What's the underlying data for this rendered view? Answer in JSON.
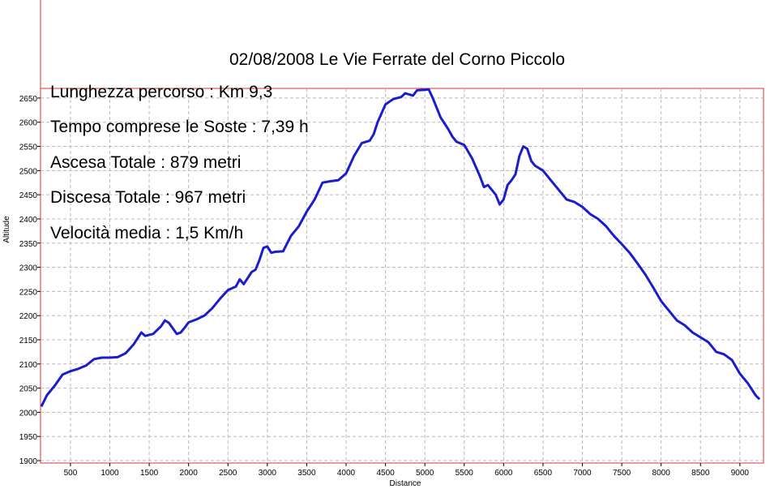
{
  "chart_data": {
    "type": "line",
    "title": "02/08/2008 Le Vie Ferrate del Corno Piccolo",
    "xlabel": "Distance",
    "ylabel": "Altitude",
    "xlim": [
      120,
      9300
    ],
    "ylim": [
      1895,
      2670
    ],
    "xticks": [
      500,
      1000,
      1500,
      2000,
      2500,
      3000,
      3500,
      4000,
      4500,
      5000,
      5500,
      6000,
      6500,
      7000,
      7500,
      8000,
      8500,
      9000
    ],
    "yticks": [
      1900,
      1950,
      2000,
      2050,
      2100,
      2150,
      2200,
      2250,
      2300,
      2350,
      2400,
      2450,
      2500,
      2550,
      2600,
      2650
    ],
    "grid": true,
    "series_color": "#1c1ccf",
    "series": [
      {
        "values": [
          [
            130,
            2012
          ],
          [
            200,
            2035
          ],
          [
            300,
            2055
          ],
          [
            400,
            2078
          ],
          [
            500,
            2085
          ],
          [
            600,
            2090
          ],
          [
            700,
            2097
          ],
          [
            800,
            2110
          ],
          [
            900,
            2113
          ],
          [
            1000,
            2113
          ],
          [
            1100,
            2114
          ],
          [
            1200,
            2122
          ],
          [
            1300,
            2140
          ],
          [
            1400,
            2165
          ],
          [
            1450,
            2158
          ],
          [
            1550,
            2162
          ],
          [
            1650,
            2178
          ],
          [
            1700,
            2190
          ],
          [
            1750,
            2185
          ],
          [
            1850,
            2162
          ],
          [
            1900,
            2165
          ],
          [
            1950,
            2175
          ],
          [
            2000,
            2186
          ],
          [
            2100,
            2192
          ],
          [
            2200,
            2200
          ],
          [
            2300,
            2215
          ],
          [
            2400,
            2235
          ],
          [
            2500,
            2253
          ],
          [
            2600,
            2260
          ],
          [
            2650,
            2275
          ],
          [
            2700,
            2265
          ],
          [
            2800,
            2290
          ],
          [
            2850,
            2295
          ],
          [
            2900,
            2315
          ],
          [
            2950,
            2340
          ],
          [
            3000,
            2343
          ],
          [
            3050,
            2330
          ],
          [
            3100,
            2332
          ],
          [
            3200,
            2333
          ],
          [
            3300,
            2365
          ],
          [
            3400,
            2385
          ],
          [
            3500,
            2415
          ],
          [
            3600,
            2440
          ],
          [
            3700,
            2475
          ],
          [
            3800,
            2478
          ],
          [
            3900,
            2480
          ],
          [
            4000,
            2494
          ],
          [
            4100,
            2530
          ],
          [
            4200,
            2557
          ],
          [
            4300,
            2562
          ],
          [
            4350,
            2575
          ],
          [
            4400,
            2600
          ],
          [
            4500,
            2637
          ],
          [
            4600,
            2648
          ],
          [
            4700,
            2652
          ],
          [
            4750,
            2660
          ],
          [
            4850,
            2655
          ],
          [
            4900,
            2666
          ],
          [
            5000,
            2667
          ],
          [
            5050,
            2668
          ],
          [
            5100,
            2650
          ],
          [
            5200,
            2610
          ],
          [
            5300,
            2585
          ],
          [
            5350,
            2570
          ],
          [
            5400,
            2560
          ],
          [
            5500,
            2553
          ],
          [
            5600,
            2525
          ],
          [
            5700,
            2488
          ],
          [
            5750,
            2466
          ],
          [
            5800,
            2470
          ],
          [
            5900,
            2450
          ],
          [
            5950,
            2430
          ],
          [
            6000,
            2440
          ],
          [
            6050,
            2470
          ],
          [
            6100,
            2480
          ],
          [
            6150,
            2492
          ],
          [
            6200,
            2530
          ],
          [
            6250,
            2550
          ],
          [
            6300,
            2545
          ],
          [
            6350,
            2520
          ],
          [
            6400,
            2510
          ],
          [
            6500,
            2500
          ],
          [
            6600,
            2480
          ],
          [
            6700,
            2460
          ],
          [
            6800,
            2440
          ],
          [
            6900,
            2435
          ],
          [
            7000,
            2425
          ],
          [
            7100,
            2410
          ],
          [
            7200,
            2400
          ],
          [
            7300,
            2385
          ],
          [
            7400,
            2365
          ],
          [
            7500,
            2348
          ],
          [
            7600,
            2330
          ],
          [
            7700,
            2308
          ],
          [
            7800,
            2285
          ],
          [
            7900,
            2258
          ],
          [
            8000,
            2230
          ],
          [
            8100,
            2210
          ],
          [
            8200,
            2190
          ],
          [
            8300,
            2180
          ],
          [
            8400,
            2165
          ],
          [
            8500,
            2155
          ],
          [
            8600,
            2145
          ],
          [
            8700,
            2125
          ],
          [
            8800,
            2120
          ],
          [
            8900,
            2108
          ],
          [
            9000,
            2080
          ],
          [
            9100,
            2060
          ],
          [
            9200,
            2035
          ],
          [
            9250,
            2027
          ]
        ]
      }
    ]
  },
  "stats": [
    "Lunghezza percorso : Km 9,3",
    "Tempo comprese le Soste : 7,39 h",
    "Ascesa Totale : 879 metri",
    "Discesa Totale : 967 metri",
    "Velocità media : 1,5 Km/h"
  ]
}
